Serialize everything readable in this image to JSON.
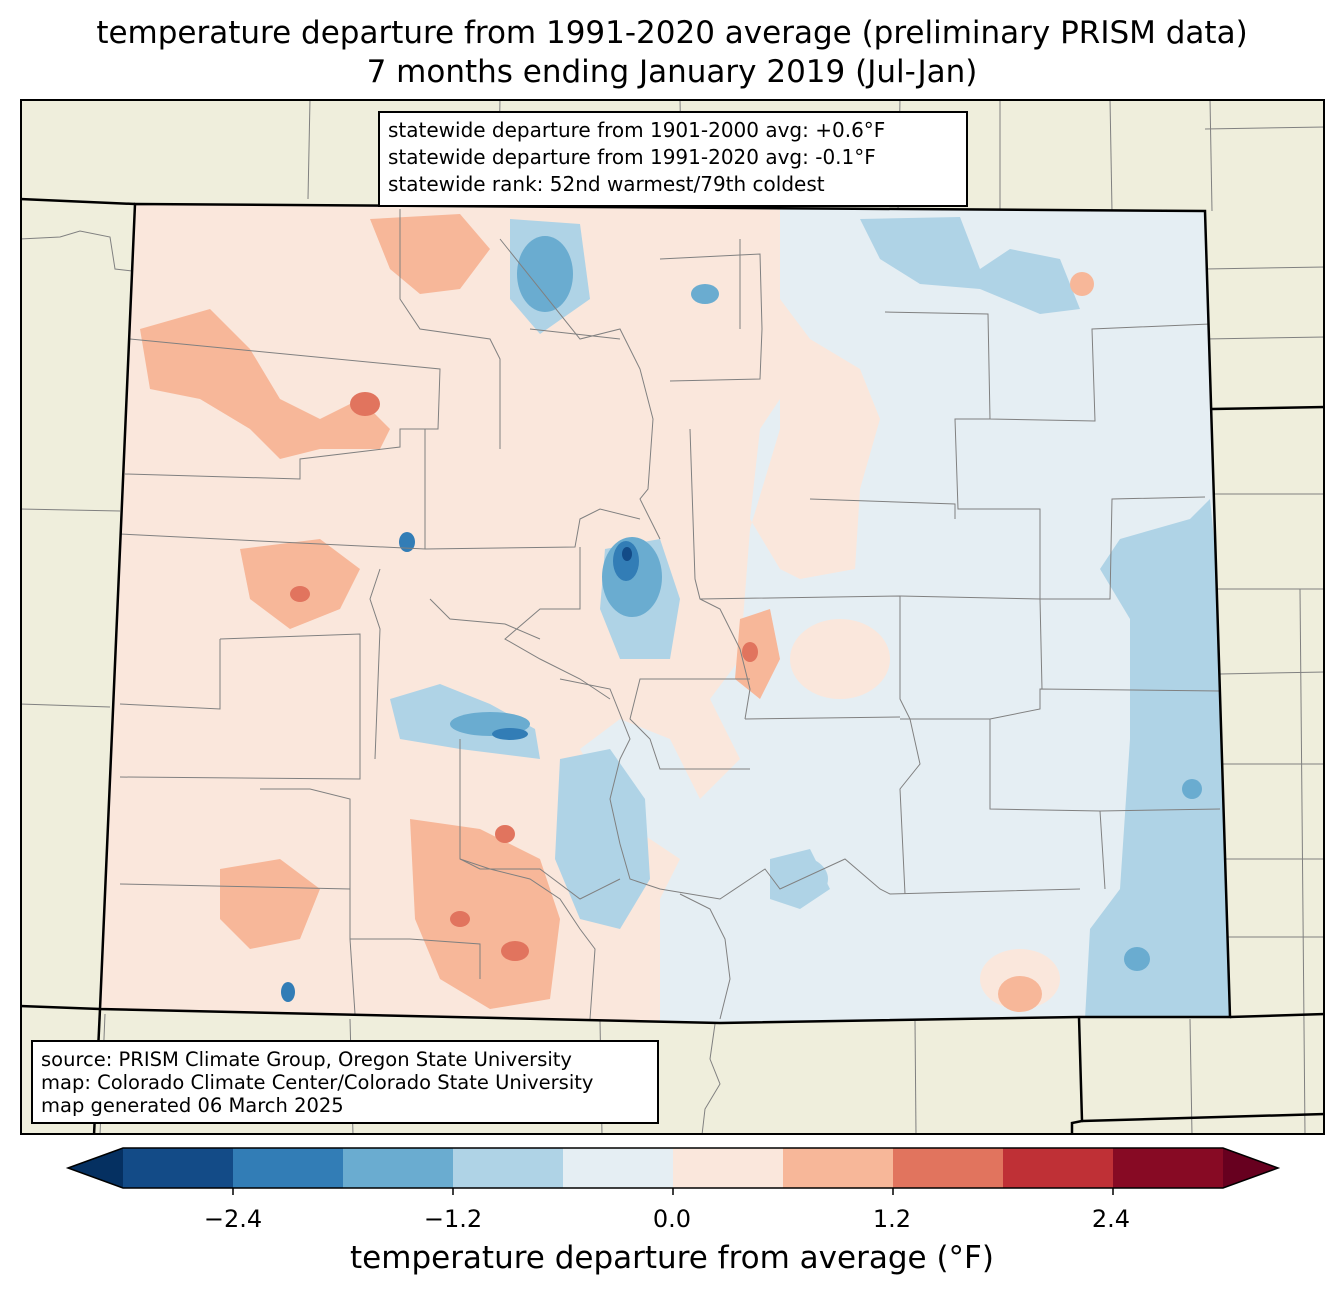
{
  "title_line1": "temperature departure from 1991-2020 average (preliminary PRISM data)",
  "title_line2": "7 months ending January 2019 (Jul-Jan)",
  "stats": {
    "line1": "statewide departure from 1901-2000 avg: +0.6°F",
    "line2": "statewide departure from 1991-2020 avg: -0.1°F",
    "line3": "statewide rank: 52nd warmest/79th coldest"
  },
  "source": {
    "line1": "source: PRISM Climate Group, Oregon State University",
    "line2": "map: Colorado Climate Center/Colorado State University",
    "line3": "map generated 06 March 2025"
  },
  "colorbar": {
    "label": "temperature departure from average (°F)",
    "ticks": [
      "−2.4",
      "−1.2",
      "0.0",
      "1.2",
      "2.4"
    ],
    "tick_values": [
      -2.4,
      -1.2,
      0.0,
      1.2,
      2.4
    ],
    "levels": [
      -3.0,
      -2.4,
      -1.8,
      -1.2,
      -0.6,
      0.0,
      0.6,
      1.2,
      1.8,
      2.4,
      3.0
    ],
    "colors": [
      "#053061",
      "#134b87",
      "#327db6",
      "#6aacd0",
      "#afd3e6",
      "#e5eef3",
      "#fae7dc",
      "#f7b799",
      "#e1745e",
      "#bf3036",
      "#870a24",
      "#67001f"
    ]
  },
  "map_colors": {
    "land_outside": "#efeedc",
    "county_line": "#808080",
    "border": "#000000"
  }
}
